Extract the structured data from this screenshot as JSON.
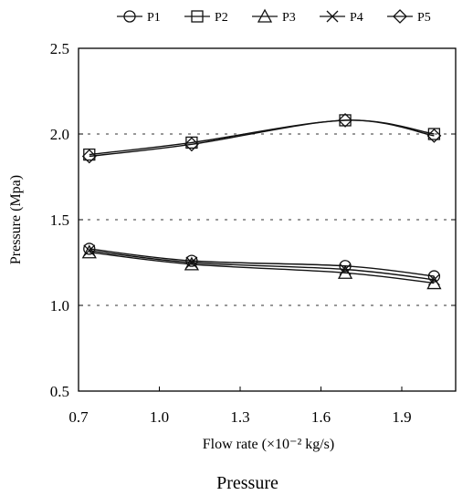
{
  "chart_data": {
    "type": "line",
    "xlabel": "Flow rate (×10⁻² kg/s)",
    "ylabel": "Pressure (Mpa)",
    "caption": "Pressure",
    "xlim": [
      0.7,
      2.1
    ],
    "ylim": [
      0.5,
      2.5
    ],
    "xticks": [
      0.7,
      1.0,
      1.3,
      1.6,
      1.9
    ],
    "xtick_labels": [
      "0.7",
      "1.0",
      "1.3",
      "1.6",
      "1.9"
    ],
    "yticks": [
      0.5,
      1.0,
      1.5,
      2.0,
      2.5
    ],
    "ytick_labels": [
      "0.5",
      "1.0",
      "1.5",
      "2.0",
      "2.5"
    ],
    "gridlines_dotted": [
      1.0,
      1.5,
      2.0
    ],
    "legend_position": "top",
    "line_color": "#111111",
    "series": [
      {
        "name": "P1",
        "marker": "circle",
        "x": [
          0.74,
          1.12,
          1.69,
          2.02
        ],
        "y": [
          1.33,
          1.26,
          1.23,
          1.17
        ]
      },
      {
        "name": "P2",
        "marker": "square",
        "x": [
          0.74,
          1.12,
          1.69,
          2.02
        ],
        "y": [
          1.88,
          1.95,
          2.08,
          2.0
        ]
      },
      {
        "name": "P3",
        "marker": "triangle",
        "x": [
          0.74,
          1.12,
          1.69,
          2.02
        ],
        "y": [
          1.31,
          1.24,
          1.19,
          1.13
        ]
      },
      {
        "name": "P4",
        "marker": "x",
        "x": [
          0.74,
          1.12,
          1.69,
          2.02
        ],
        "y": [
          1.32,
          1.25,
          1.21,
          1.15
        ]
      },
      {
        "name": "P5",
        "marker": "diamond",
        "x": [
          0.74,
          1.12,
          1.69,
          2.02
        ],
        "y": [
          1.87,
          1.94,
          2.08,
          1.99
        ]
      }
    ]
  }
}
